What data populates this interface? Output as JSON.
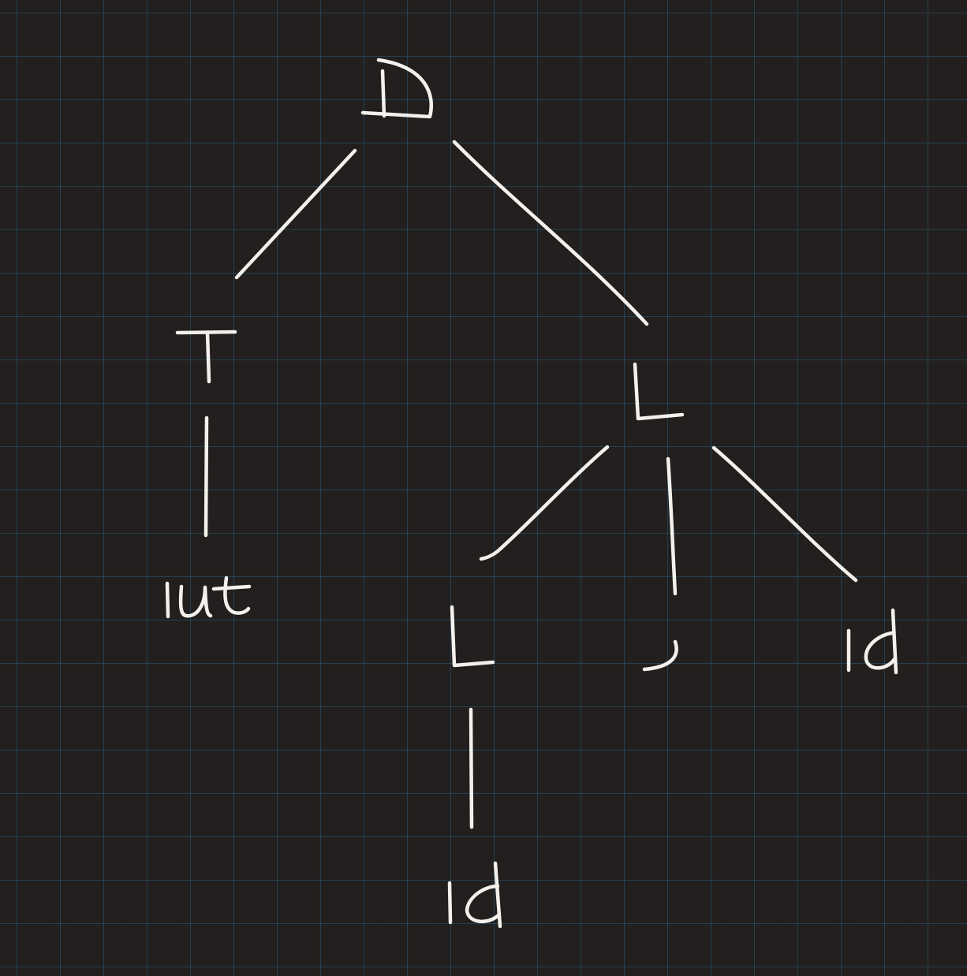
{
  "diagram": {
    "type": "parse-tree",
    "ink_color": "#f4f1ec",
    "background_color": "#221f1e",
    "grid_color": "#285c78",
    "nodes": {
      "root": {
        "label": "D"
      },
      "t": {
        "label": "T"
      },
      "l1": {
        "label": "L"
      },
      "int": {
        "label": "int"
      },
      "l2": {
        "label": "L"
      },
      "comma": {
        "label": ","
      },
      "id_right": {
        "label": "id"
      },
      "id_bottom": {
        "label": "id"
      }
    },
    "edges": [
      {
        "from": "D",
        "to": "T"
      },
      {
        "from": "D",
        "to": "L"
      },
      {
        "from": "T",
        "to": "int"
      },
      {
        "from": "L",
        "to": "L"
      },
      {
        "from": "L",
        "to": ","
      },
      {
        "from": "L",
        "to": "id"
      },
      {
        "from": "L",
        "to": "id"
      }
    ]
  }
}
